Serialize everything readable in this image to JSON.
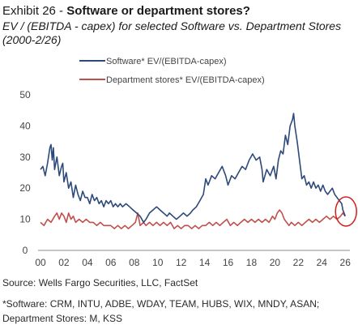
{
  "header": {
    "exhibit": "Exhibit 26 - ",
    "title_bold": "Software or department stores?",
    "subtitle": "EV / (EBITDA - capex) for selected Software vs. Department Stores (2000-2/26)"
  },
  "footer": {
    "source": "Source: Wells Fargo Securities, LLC, FactSet",
    "footnote_line1": "*Software: CRM, INTU, ADBE, WDAY, TEAM, HUBS, WIX, MNDY, ASAN;",
    "footnote_line2": "Department Stores: M, KSS"
  },
  "colors": {
    "software": "#2e4a7a",
    "department": "#c0504d",
    "highlight_circle": "#d21f1f",
    "axis_text": "#444444"
  },
  "chart_data": {
    "type": "line",
    "x_tick_labels": [
      "00",
      "02",
      "04",
      "06",
      "08",
      "10",
      "12",
      "14",
      "16",
      "18",
      "20",
      "22",
      "24",
      "26"
    ],
    "xlim": [
      2000,
      2026.4
    ],
    "ylim": [
      0,
      50
    ],
    "y_ticks": [
      0,
      10,
      20,
      30,
      40,
      50
    ],
    "grid": false,
    "legend_position": "top-left",
    "annotation": "red circle around the latest (2/26) data points",
    "series": [
      {
        "name": "Software* EV/(EBITDA-capex)",
        "points": [
          [
            2000.0,
            26
          ],
          [
            2000.2,
            27
          ],
          [
            2000.4,
            24
          ],
          [
            2000.6,
            28
          ],
          [
            2000.8,
            33
          ],
          [
            2000.9,
            34
          ],
          [
            2001.0,
            29
          ],
          [
            2001.1,
            33
          ],
          [
            2001.2,
            26
          ],
          [
            2001.4,
            30
          ],
          [
            2001.6,
            24
          ],
          [
            2001.8,
            27
          ],
          [
            2001.9,
            28
          ],
          [
            2002.0,
            22
          ],
          [
            2002.2,
            25
          ],
          [
            2002.4,
            20
          ],
          [
            2002.6,
            22
          ],
          [
            2002.8,
            17
          ],
          [
            2003.0,
            21
          ],
          [
            2003.2,
            18
          ],
          [
            2003.4,
            16
          ],
          [
            2003.6,
            19
          ],
          [
            2003.8,
            17
          ],
          [
            2004.0,
            17
          ],
          [
            2004.2,
            15
          ],
          [
            2004.4,
            18
          ],
          [
            2004.6,
            16
          ],
          [
            2004.8,
            17
          ],
          [
            2005.0,
            15
          ],
          [
            2005.2,
            16
          ],
          [
            2005.4,
            14
          ],
          [
            2005.6,
            16
          ],
          [
            2005.8,
            15
          ],
          [
            2006.0,
            16
          ],
          [
            2006.2,
            14
          ],
          [
            2006.4,
            15
          ],
          [
            2006.6,
            14
          ],
          [
            2006.8,
            15
          ],
          [
            2007.0,
            14
          ],
          [
            2007.3,
            15
          ],
          [
            2007.6,
            14
          ],
          [
            2007.9,
            13
          ],
          [
            2008.2,
            12
          ],
          [
            2008.5,
            11
          ],
          [
            2008.8,
            9
          ],
          [
            2009.0,
            10
          ],
          [
            2009.3,
            12
          ],
          [
            2009.6,
            13
          ],
          [
            2009.9,
            14
          ],
          [
            2010.2,
            13
          ],
          [
            2010.5,
            12
          ],
          [
            2010.8,
            11
          ],
          [
            2011.0,
            12
          ],
          [
            2011.3,
            11
          ],
          [
            2011.6,
            10
          ],
          [
            2011.9,
            11
          ],
          [
            2012.2,
            12
          ],
          [
            2012.5,
            11
          ],
          [
            2012.8,
            12
          ],
          [
            2013.0,
            13
          ],
          [
            2013.3,
            14
          ],
          [
            2013.6,
            16
          ],
          [
            2013.9,
            18
          ],
          [
            2014.1,
            23
          ],
          [
            2014.3,
            21
          ],
          [
            2014.6,
            24
          ],
          [
            2014.9,
            23
          ],
          [
            2015.2,
            25
          ],
          [
            2015.5,
            27
          ],
          [
            2015.8,
            24
          ],
          [
            2016.0,
            21
          ],
          [
            2016.3,
            24
          ],
          [
            2016.6,
            23
          ],
          [
            2016.9,
            25
          ],
          [
            2017.2,
            27
          ],
          [
            2017.5,
            26
          ],
          [
            2017.8,
            29
          ],
          [
            2018.1,
            31
          ],
          [
            2018.4,
            29
          ],
          [
            2018.7,
            30
          ],
          [
            2018.9,
            26
          ],
          [
            2019.0,
            22
          ],
          [
            2019.3,
            26
          ],
          [
            2019.6,
            24
          ],
          [
            2019.9,
            27
          ],
          [
            2020.1,
            23
          ],
          [
            2020.3,
            29
          ],
          [
            2020.5,
            32
          ],
          [
            2020.7,
            31
          ],
          [
            2020.9,
            37
          ],
          [
            2021.1,
            34
          ],
          [
            2021.3,
            40
          ],
          [
            2021.5,
            42
          ],
          [
            2021.6,
            44
          ],
          [
            2021.7,
            40
          ],
          [
            2021.9,
            35
          ],
          [
            2022.1,
            29
          ],
          [
            2022.3,
            23
          ],
          [
            2022.5,
            24
          ],
          [
            2022.7,
            21
          ],
          [
            2022.9,
            22
          ],
          [
            2023.1,
            20
          ],
          [
            2023.3,
            22
          ],
          [
            2023.5,
            20
          ],
          [
            2023.7,
            21
          ],
          [
            2023.9,
            19
          ],
          [
            2024.1,
            21
          ],
          [
            2024.3,
            19
          ],
          [
            2024.5,
            18
          ],
          [
            2024.7,
            19
          ],
          [
            2024.9,
            20
          ],
          [
            2025.1,
            18
          ],
          [
            2025.3,
            17
          ],
          [
            2025.5,
            16
          ],
          [
            2025.7,
            15
          ],
          [
            2025.8,
            13
          ],
          [
            2025.9,
            12
          ],
          [
            2026.0,
            11
          ]
        ]
      },
      {
        "name": "Department stores* EV/(EBITDA-capex)",
        "points": [
          [
            2000.0,
            9
          ],
          [
            2000.3,
            8
          ],
          [
            2000.6,
            10
          ],
          [
            2000.9,
            9
          ],
          [
            2001.2,
            11
          ],
          [
            2001.4,
            12
          ],
          [
            2001.6,
            10
          ],
          [
            2001.8,
            12
          ],
          [
            2002.0,
            11
          ],
          [
            2002.2,
            9
          ],
          [
            2002.4,
            12
          ],
          [
            2002.6,
            10
          ],
          [
            2002.8,
            11
          ],
          [
            2003.0,
            9
          ],
          [
            2003.3,
            10
          ],
          [
            2003.6,
            9
          ],
          [
            2003.9,
            10
          ],
          [
            2004.2,
            9
          ],
          [
            2004.5,
            9
          ],
          [
            2004.8,
            8
          ],
          [
            2005.1,
            9
          ],
          [
            2005.4,
            8
          ],
          [
            2005.7,
            8
          ],
          [
            2006.0,
            8
          ],
          [
            2006.3,
            7
          ],
          [
            2006.6,
            8
          ],
          [
            2006.9,
            7
          ],
          [
            2007.2,
            8
          ],
          [
            2007.5,
            7
          ],
          [
            2007.8,
            8
          ],
          [
            2008.1,
            9
          ],
          [
            2008.3,
            12
          ],
          [
            2008.5,
            8
          ],
          [
            2008.8,
            9
          ],
          [
            2009.0,
            8
          ],
          [
            2009.3,
            9
          ],
          [
            2009.6,
            8
          ],
          [
            2009.9,
            9
          ],
          [
            2010.2,
            8
          ],
          [
            2010.5,
            9
          ],
          [
            2010.8,
            8
          ],
          [
            2011.1,
            9
          ],
          [
            2011.4,
            7
          ],
          [
            2011.7,
            8
          ],
          [
            2012.0,
            7
          ],
          [
            2012.3,
            8
          ],
          [
            2012.6,
            8
          ],
          [
            2012.9,
            7
          ],
          [
            2013.2,
            8
          ],
          [
            2013.5,
            7
          ],
          [
            2013.8,
            8
          ],
          [
            2014.1,
            8
          ],
          [
            2014.4,
            9
          ],
          [
            2014.7,
            8
          ],
          [
            2015.0,
            9
          ],
          [
            2015.3,
            8
          ],
          [
            2015.6,
            9
          ],
          [
            2015.9,
            10
          ],
          [
            2016.2,
            8
          ],
          [
            2016.5,
            9
          ],
          [
            2016.8,
            8
          ],
          [
            2017.1,
            9
          ],
          [
            2017.4,
            10
          ],
          [
            2017.7,
            9
          ],
          [
            2018.0,
            10
          ],
          [
            2018.3,
            9
          ],
          [
            2018.6,
            10
          ],
          [
            2018.9,
            9
          ],
          [
            2019.2,
            10
          ],
          [
            2019.5,
            9
          ],
          [
            2019.8,
            11
          ],
          [
            2020.0,
            10
          ],
          [
            2020.2,
            12
          ],
          [
            2020.4,
            13
          ],
          [
            2020.6,
            12
          ],
          [
            2020.8,
            10
          ],
          [
            2021.0,
            9
          ],
          [
            2021.2,
            8
          ],
          [
            2021.4,
            9
          ],
          [
            2021.7,
            8
          ],
          [
            2022.0,
            9
          ],
          [
            2022.3,
            8
          ],
          [
            2022.6,
            9
          ],
          [
            2022.9,
            10
          ],
          [
            2023.2,
            9
          ],
          [
            2023.5,
            10
          ],
          [
            2023.8,
            9
          ],
          [
            2024.1,
            10
          ],
          [
            2024.4,
            11
          ],
          [
            2024.7,
            10
          ],
          [
            2025.0,
            11
          ],
          [
            2025.3,
            10
          ],
          [
            2025.6,
            11
          ],
          [
            2025.8,
            12
          ],
          [
            2026.0,
            11
          ]
        ]
      }
    ]
  }
}
